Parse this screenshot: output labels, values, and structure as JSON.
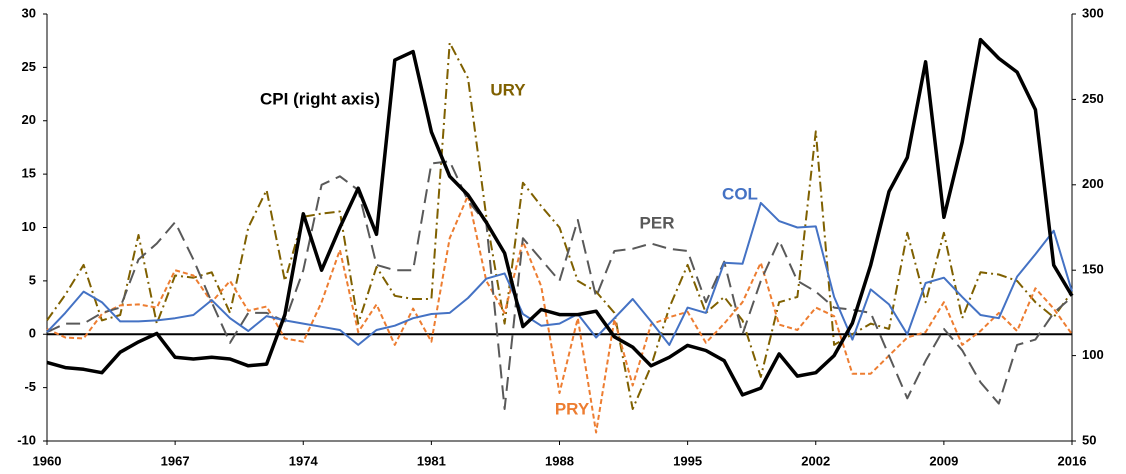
{
  "chart_data": {
    "type": "line",
    "x": [
      1960,
      1961,
      1962,
      1963,
      1964,
      1965,
      1966,
      1967,
      1968,
      1969,
      1970,
      1971,
      1972,
      1973,
      1974,
      1975,
      1976,
      1977,
      1978,
      1979,
      1980,
      1981,
      1982,
      1983,
      1984,
      1985,
      1986,
      1987,
      1988,
      1989,
      1990,
      1991,
      1992,
      1993,
      1994,
      1995,
      1996,
      1997,
      1998,
      1999,
      2000,
      2001,
      2002,
      2003,
      2004,
      2005,
      2006,
      2007,
      2008,
      2009,
      2010,
      2011,
      2012,
      2013,
      2014,
      2015,
      2016
    ],
    "xlim": [
      1960,
      2016
    ],
    "xticks": [
      1960,
      1967,
      1974,
      1981,
      1988,
      1995,
      2002,
      2009,
      2016
    ],
    "ylim": [
      -10,
      30
    ],
    "yticks": [
      -10,
      -5,
      0,
      5,
      10,
      15,
      20,
      25,
      30
    ],
    "y2lim": [
      50,
      300
    ],
    "y2ticks": [
      50,
      100,
      150,
      200,
      250,
      300
    ],
    "series": [
      {
        "name": "URY",
        "color": "#7f6000",
        "values": [
          1.3,
          3.7,
          6.5,
          1.3,
          1.8,
          9.3,
          1,
          5.5,
          5.3,
          5.8,
          2,
          10,
          13.5,
          5,
          11,
          11.3,
          11.5,
          1,
          6.3,
          3.6,
          3.3,
          3.3,
          27.3,
          24,
          11,
          1,
          14.2,
          12,
          10,
          5,
          4,
          2,
          -7,
          -3,
          2.5,
          6.5,
          2,
          3.5,
          1.3,
          -4,
          3,
          3.5,
          19,
          -1,
          0,
          1,
          0.5,
          9.5,
          3,
          9.5,
          1.5,
          5.8,
          5.6,
          5,
          3,
          1.6,
          4
        ]
      },
      {
        "name": "PRY",
        "color": "#ed7d31",
        "values": [
          0.5,
          -0.3,
          -0.4,
          1.9,
          2.7,
          2.8,
          2.5,
          6,
          5.5,
          3,
          5,
          2.2,
          2.6,
          -0.4,
          -0.7,
          3,
          7.9,
          0.2,
          2.8,
          -1,
          2.4,
          -0.7,
          9,
          13,
          5,
          2,
          8.7,
          4.5,
          -5.5,
          1.5,
          -9.2,
          1.4,
          -4.8,
          0.9,
          1.6,
          2.1,
          -0.8,
          1,
          3,
          6.7,
          0.9,
          0.4,
          2.5,
          1.7,
          -3.7,
          -3.7,
          -2,
          -0.3,
          0.2,
          3,
          -1,
          0.3,
          2,
          0.3,
          4.3,
          2.4,
          0
        ]
      },
      {
        "name": "PER",
        "color": "#595959",
        "values": [
          0.2,
          1,
          1,
          2,
          2.5,
          7,
          8.5,
          10.5,
          7,
          3,
          -0.8,
          2,
          2,
          1.2,
          6,
          14,
          14.8,
          13.5,
          6.5,
          6,
          6,
          16,
          16.2,
          12.5,
          10.4,
          -7,
          9,
          7,
          5,
          10.7,
          3.5,
          7.8,
          8,
          8.5,
          8,
          7.8,
          3,
          6.8,
          0,
          5,
          8.8,
          5,
          4,
          2.5,
          2.3,
          2,
          -2,
          -6,
          -2.5,
          0.5,
          -1.5,
          -4.5,
          -6.5,
          -1,
          -0.5,
          2,
          3.5
        ]
      },
      {
        "name": "COL",
        "color": "#4472c4",
        "values": [
          0.2,
          2,
          4,
          3,
          1.2,
          1.2,
          1.3,
          1.5,
          1.8,
          3.2,
          1.5,
          0.3,
          1.7,
          1.3,
          1,
          0.7,
          0.4,
          -1,
          0.4,
          0.8,
          1.5,
          1.9,
          2,
          3.4,
          5.2,
          5.7,
          1.9,
          0.8,
          1,
          1.9,
          -0.3,
          1.5,
          3.3,
          1.2,
          -1,
          2.5,
          2,
          6.7,
          6.6,
          12.3,
          10.6,
          10,
          10.1,
          3.5,
          -0.5,
          4.2,
          2.8,
          0,
          4.8,
          5.3,
          3.5,
          1.8,
          1.5,
          5.4,
          7.5,
          9.7,
          4
        ]
      },
      {
        "name": "CPI (right axis)",
        "color": "#000000",
        "axis": "y2",
        "values": [
          96,
          93,
          92,
          90,
          102,
          108,
          113,
          99,
          98,
          99,
          98,
          94,
          95,
          124,
          183,
          150,
          175,
          198,
          171,
          273,
          278,
          231,
          205,
          194,
          178,
          160,
          117,
          127,
          124,
          124,
          126,
          111,
          105,
          94,
          99,
          106,
          103,
          97,
          77,
          81,
          101,
          88,
          90,
          100,
          119,
          153,
          196,
          216,
          272,
          181,
          225,
          285,
          274,
          266,
          244,
          153,
          135
        ]
      }
    ]
  }
}
